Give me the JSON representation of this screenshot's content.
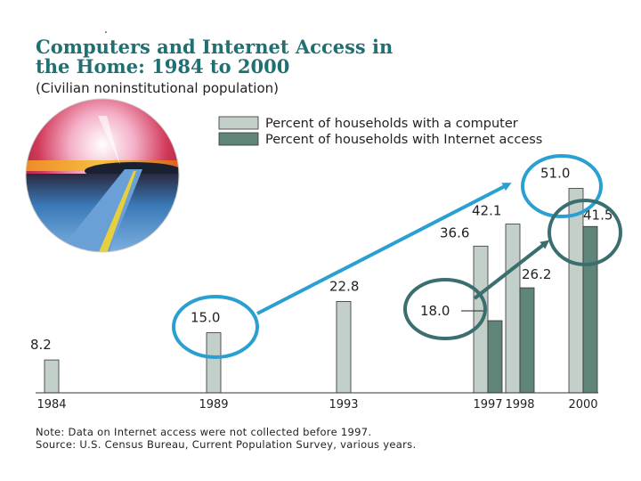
{
  "chart_data": {
    "type": "bar",
    "title_line1": "Computers and Internet Access in",
    "title_line2": "the Home:  1984 to 2000",
    "subtitle": "(Civilian noninstitutional population)",
    "categories": [
      "1984",
      "1989",
      "1993",
      "1997",
      "1998",
      "2000"
    ],
    "series": [
      {
        "name": "Percent of households with a computer",
        "values": [
          8.2,
          15.0,
          22.8,
          36.6,
          42.1,
          51.0
        ],
        "labels": [
          "8.2",
          "15.0",
          "22.8",
          "36.6",
          "42.1",
          "51.0"
        ],
        "color": "#c3cfc9"
      },
      {
        "name": "Percent of households with Internet access",
        "values": [
          null,
          null,
          null,
          18.0,
          26.2,
          41.5
        ],
        "labels": [
          "",
          "",
          "",
          "18.0",
          "26.2",
          "41.5"
        ],
        "color": "#5f8478"
      }
    ],
    "ylim": [
      0,
      55
    ],
    "grid": false,
    "legend": "top-right",
    "note": "Note:  Data on Internet access were not collected before 1997.",
    "source": "Source: U.S. Census Bureau, Current Population Survey, various years.",
    "annotation_color": "#2aa0d2",
    "annotation_dark_color": "#3b6e6e"
  }
}
